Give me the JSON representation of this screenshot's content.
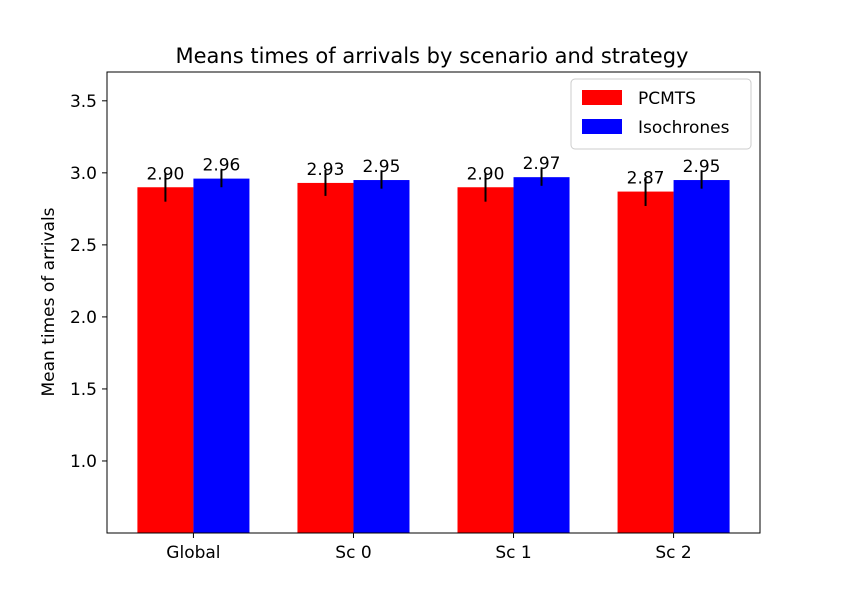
{
  "chart_data": {
    "type": "bar",
    "title": "Means times of arrivals by scenario and strategy",
    "xlabel": "",
    "ylabel": "Mean times of arrivals",
    "categories": [
      "Global",
      "Sc 0",
      "Sc 1",
      "Sc 2"
    ],
    "series": [
      {
        "name": "PCMTS",
        "color": "#ff0000",
        "values": [
          2.9,
          2.93,
          2.9,
          2.87
        ],
        "value_labels": [
          "2.90",
          "2.93",
          "2.90",
          "2.87"
        ],
        "errors": [
          0.1,
          0.09,
          0.1,
          0.1
        ]
      },
      {
        "name": "Isochrones",
        "color": "#0000ff",
        "values": [
          2.96,
          2.95,
          2.97,
          2.95
        ],
        "value_labels": [
          "2.96",
          "2.95",
          "2.97",
          "2.95"
        ],
        "errors": [
          0.06,
          0.06,
          0.06,
          0.06
        ]
      }
    ],
    "ylim": [
      0.5,
      3.7
    ],
    "yticks": [
      1.0,
      1.5,
      2.0,
      2.5,
      3.0,
      3.5
    ],
    "ytick_labels": [
      "1.0",
      "1.5",
      "2.0",
      "2.5",
      "3.0",
      "3.5"
    ],
    "grid": false,
    "legend_position": "top-right"
  }
}
